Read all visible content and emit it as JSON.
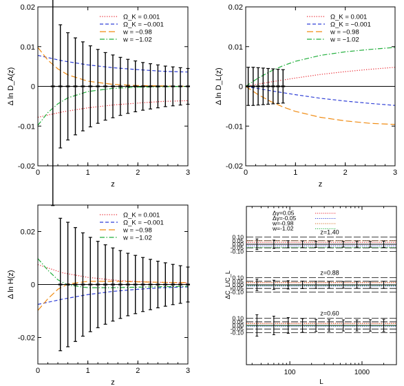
{
  "chart_data": [
    {
      "type": "line",
      "ylabel": "Δ ln D_A(z)",
      "xlabel": "z",
      "xlim": [
        0,
        3
      ],
      "ylim": [
        -0.02,
        0.02
      ],
      "xticks": [
        "0",
        "1",
        "2",
        "3"
      ],
      "yticks": [
        "-0.02",
        "-0.01",
        "0",
        "0.01",
        "0.02"
      ],
      "legend_position": "top-right",
      "legend": [
        "Ω_K = 0.001",
        "Ω_K = −0.001",
        "w = −0.98",
        "w = −1.02"
      ],
      "series": [
        {
          "name": "Ω_K = 0.001",
          "color": "#e8202a",
          "style": "dotted",
          "x": [
            0,
            0.5,
            1,
            1.5,
            2,
            2.5,
            3
          ],
          "y": [
            -0.0078,
            -0.0064,
            -0.0054,
            -0.0047,
            -0.0042,
            -0.0038,
            -0.0036
          ]
        },
        {
          "name": "Ω_K = −0.001",
          "color": "#2f3fd6",
          "style": "dashed",
          "x": [
            0,
            0.5,
            1,
            1.5,
            2,
            2.5,
            3
          ],
          "y": [
            0.0078,
            0.0064,
            0.0054,
            0.0047,
            0.0042,
            0.0038,
            0.0036
          ]
        },
        {
          "name": "w = −0.98",
          "color": "#f08a10",
          "style": "longdash",
          "x": [
            0,
            0.2,
            0.4,
            0.6,
            1,
            1.5,
            2,
            2.5,
            3
          ],
          "y": [
            0.0098,
            0.0066,
            0.0044,
            0.0029,
            0.0013,
            0.0005,
            0.0002,
            0.0001,
            0
          ]
        },
        {
          "name": "w = −1.02",
          "color": "#1fae3a",
          "style": "dashdot",
          "x": [
            0,
            0.2,
            0.4,
            0.6,
            1,
            1.5,
            2,
            2.5,
            3
          ],
          "y": [
            -0.0098,
            -0.0066,
            -0.0044,
            -0.0029,
            -0.0013,
            -0.0005,
            -0.0002,
            -0.0001,
            0
          ]
        }
      ],
      "errorbars": {
        "x": [
          0.3,
          0.45,
          0.6,
          0.75,
          0.9,
          1.05,
          1.2,
          1.35,
          1.5,
          1.65,
          1.8,
          1.95,
          2.1,
          2.25,
          2.4,
          2.55,
          2.7,
          2.85,
          3.0
        ],
        "y": [
          0,
          0,
          0,
          0,
          0,
          0,
          0,
          0,
          0,
          0,
          0,
          0,
          0,
          0,
          0,
          0,
          0,
          0,
          0
        ],
        "err": [
          0.03,
          0.0155,
          0.0135,
          0.0122,
          0.0112,
          0.0102,
          0.0093,
          0.0085,
          0.0079,
          0.0073,
          0.0068,
          0.0064,
          0.006,
          0.0057,
          0.0054,
          0.0051,
          0.0049,
          0.0047,
          0.0045
        ]
      }
    },
    {
      "type": "line",
      "ylabel": "Δ ln D_L(z)",
      "xlabel": "z",
      "xlim": [
        0,
        3
      ],
      "ylim": [
        -0.02,
        0.02
      ],
      "xticks": [
        "0",
        "1",
        "2",
        "3"
      ],
      "yticks": [
        "-0.02",
        "-0.01",
        "0",
        "0.01",
        "0.02"
      ],
      "legend_position": "top-right",
      "legend": [
        "Ω_K = 0.001",
        "Ω_K = −0.001",
        "w = −0.98",
        "w = −1.02"
      ],
      "series": [
        {
          "name": "Ω_K = 0.001",
          "color": "#e8202a",
          "style": "dotted",
          "x": [
            0,
            0.5,
            1,
            1.5,
            2,
            2.5,
            3
          ],
          "y": [
            0,
            0.0011,
            0.0021,
            0.003,
            0.0037,
            0.0043,
            0.0048
          ]
        },
        {
          "name": "Ω_K = −0.001",
          "color": "#2f3fd6",
          "style": "dashed",
          "x": [
            0,
            0.5,
            1,
            1.5,
            2,
            2.5,
            3
          ],
          "y": [
            0,
            -0.0011,
            -0.0021,
            -0.003,
            -0.0037,
            -0.0043,
            -0.0048
          ]
        },
        {
          "name": "w = −0.98",
          "color": "#f08a10",
          "style": "longdash",
          "x": [
            0,
            0.25,
            0.5,
            0.75,
            1,
            1.5,
            2,
            2.5,
            3
          ],
          "y": [
            0,
            -0.0021,
            -0.0038,
            -0.0052,
            -0.0063,
            -0.0078,
            -0.0087,
            -0.0093,
            -0.0096
          ]
        },
        {
          "name": "w = −1.02",
          "color": "#1fae3a",
          "style": "dashdot",
          "x": [
            0,
            0.25,
            0.5,
            0.75,
            1,
            1.5,
            2,
            2.5,
            3
          ],
          "y": [
            0,
            0.0021,
            0.0038,
            0.0052,
            0.0063,
            0.0078,
            0.0087,
            0.0093,
            0.0098
          ]
        }
      ],
      "errorbars": {
        "x": [
          0.05,
          0.15,
          0.25,
          0.35,
          0.45,
          0.55,
          0.65,
          0.75
        ],
        "y": [
          0,
          0,
          0,
          0,
          0,
          0,
          0,
          0
        ],
        "err": [
          0.0048,
          0.0048,
          0.0047,
          0.0046,
          0.0045,
          0.0044,
          0.0043,
          0.0042
        ]
      }
    },
    {
      "type": "line",
      "ylabel": "Δ ln H(z)",
      "xlabel": "z",
      "xlim": [
        0,
        3
      ],
      "ylim": [
        -0.03,
        0.03
      ],
      "xticks": [
        "0",
        "1",
        "2",
        "3"
      ],
      "yticks": [
        "-0.02",
        "0",
        "0.02"
      ],
      "legend_position": "top-right",
      "legend": [
        "Ω_K = 0.001",
        "Ω_K = −0.001",
        "w = −0.98",
        "w = −1.02"
      ],
      "series": [
        {
          "name": "Ω_K = 0.001",
          "color": "#e8202a",
          "style": "dotted",
          "x": [
            0,
            0.5,
            1,
            1.5,
            2,
            2.5,
            3
          ],
          "y": [
            0.0075,
            0.0044,
            0.0027,
            0.0017,
            0.0011,
            0.0008,
            0.0006
          ]
        },
        {
          "name": "Ω_K = −0.001",
          "color": "#2f3fd6",
          "style": "dashed",
          "x": [
            0,
            0.5,
            1,
            1.5,
            2,
            2.5,
            3
          ],
          "y": [
            -0.0075,
            -0.0055,
            -0.0038,
            -0.0026,
            -0.0018,
            -0.0012,
            -0.0009
          ]
        },
        {
          "name": "w = −0.98",
          "color": "#f08a10",
          "style": "longdash",
          "x": [
            0,
            0.2,
            0.4,
            0.6,
            1,
            1.5,
            2,
            2.5,
            3
          ],
          "y": [
            -0.0098,
            -0.0054,
            -0.0018,
            0.0002,
            0.0012,
            0.0012,
            0.001,
            0.0008,
            0.0007
          ]
        },
        {
          "name": "w = −1.02",
          "color": "#1fae3a",
          "style": "dashdot",
          "x": [
            0,
            0.2,
            0.4,
            0.6,
            1,
            1.5,
            2,
            2.5,
            3
          ],
          "y": [
            0.0098,
            0.0054,
            0.0018,
            -0.0002,
            -0.0012,
            -0.0012,
            -0.001,
            -0.0008,
            -0.0007
          ]
        }
      ],
      "errorbars": {
        "x": [
          0.45,
          0.6,
          0.75,
          0.9,
          1.05,
          1.2,
          1.35,
          1.5,
          1.65,
          1.8,
          1.95,
          2.1,
          2.25,
          2.4,
          2.55,
          2.7,
          2.85,
          3.0
        ],
        "y": [
          0,
          0,
          0,
          0,
          0,
          0,
          0,
          0,
          0,
          0,
          0,
          0,
          0,
          0,
          0,
          0,
          0,
          0
        ],
        "err": [
          0.025,
          0.0235,
          0.0215,
          0.0195,
          0.0178,
          0.0163,
          0.015,
          0.0138,
          0.0128,
          0.0118,
          0.011,
          0.0102,
          0.0095,
          0.0088,
          0.0082,
          0.0076,
          0.0071,
          0.0066
        ]
      }
    },
    {
      "type": "line",
      "ylabel": "ΔC_L/C_L",
      "xlabel": "L",
      "xscale": "log",
      "xlim": [
        25,
        3000
      ],
      "xticks": [
        "100",
        "1000"
      ],
      "yticks": [
        "0.10",
        "0.05",
        "0.00",
        "-0.05",
        "-0.10"
      ],
      "legend_position": "top-left",
      "legend": [
        "Δγ=0.05",
        "Δγ=-0.05",
        "w=-0.98",
        "w=-1.02"
      ],
      "legend_colors": [
        "#e8202a",
        "#2f3fd6",
        "#d2691e",
        "#1fae3a"
      ],
      "panels": [
        {
          "label": "z=1.40",
          "lines": [
            0.025,
            -0.022,
            0.048,
            -0.045
          ],
          "errorbars": {
            "x": [
              35,
              60,
              95,
              150,
              230,
              350,
              550,
              850,
              1300,
              2000
            ],
            "err": [
              0.075,
              0.058,
              0.05,
              0.046,
              0.043,
              0.041,
              0.04,
              0.04,
              0.041,
              0.043
            ]
          }
        },
        {
          "label": "z=0.88",
          "lines": [
            0.03,
            -0.018,
            0.035,
            -0.01
          ],
          "errorbars": {
            "x": [
              35,
              60,
              95,
              150,
              230,
              350,
              550,
              850,
              1300,
              2000
            ],
            "err": [
              0.08,
              0.065,
              0.058,
              0.053,
              0.05,
              0.048,
              0.047,
              0.047,
              0.048,
              0.05
            ]
          }
        },
        {
          "label": "z=0.60",
          "lines": [
            0.03,
            -0.012,
            0.025,
            -0.005
          ],
          "errorbars": {
            "x": [
              35,
              60,
              95,
              150,
              230,
              350,
              550,
              850,
              1300,
              2000
            ],
            "err": [
              0.15,
              0.13,
              0.11,
              0.095,
              0.085,
              0.08,
              0.078,
              0.078,
              0.08,
              0.085
            ]
          }
        }
      ]
    }
  ]
}
